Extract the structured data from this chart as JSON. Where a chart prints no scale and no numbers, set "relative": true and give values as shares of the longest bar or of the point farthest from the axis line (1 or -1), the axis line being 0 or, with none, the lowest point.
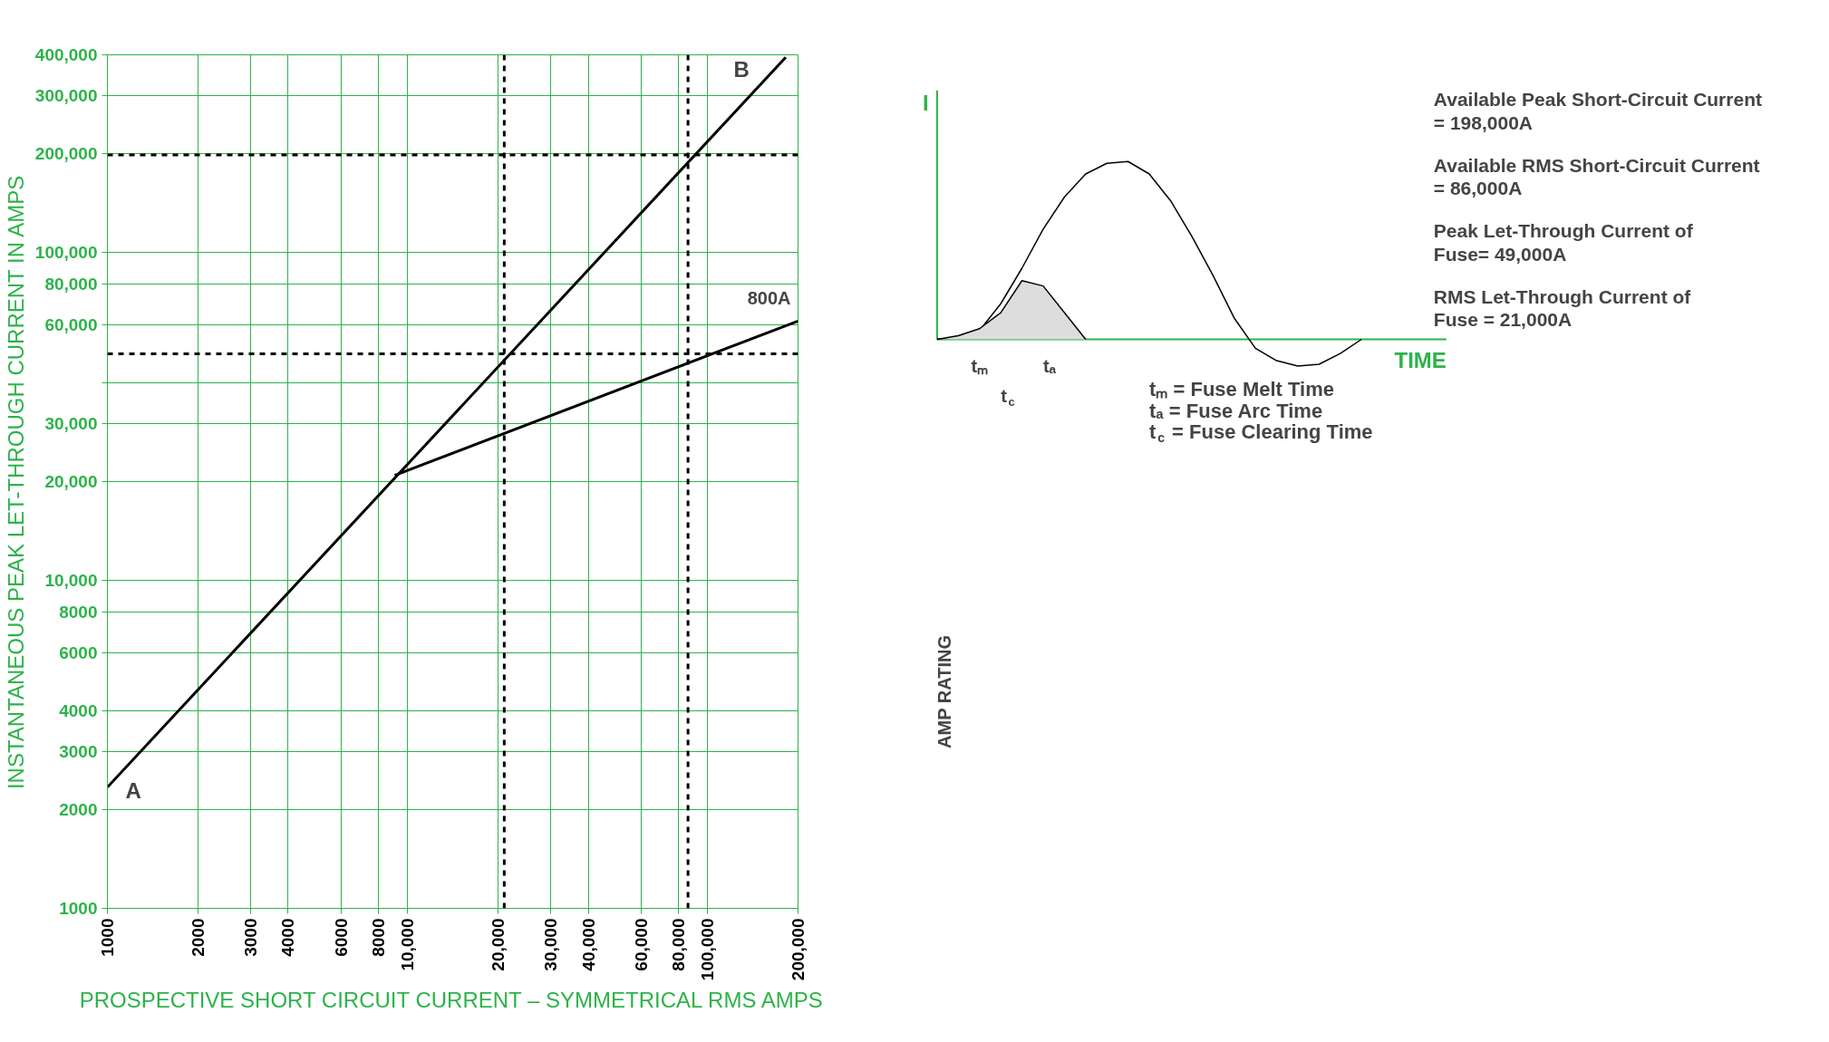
{
  "chart_data": [
    {
      "type": "line",
      "xlabel": "PROSPECTIVE SHORT CIRCUIT CURRENT – SYMMETRICAL RMS AMPS",
      "ylabel": "INSTANTANEOUS PEAK LET-THROUGH CURRENT IN AMPS",
      "log": "xy",
      "xlim": [
        1000,
        200000
      ],
      "ylim": [
        1000,
        400000
      ],
      "xticks": [
        1000,
        2000,
        3000,
        4000,
        6000,
        8000,
        {
          "value": 10000,
          "label": "10,000"
        },
        {
          "value": 20000,
          "label": "20,000"
        },
        {
          "value": 30000,
          "label": "30,000"
        },
        {
          "value": 40000,
          "label": "40,000"
        },
        {
          "value": 60000,
          "label": "60,000"
        },
        {
          "value": 80000,
          "label": "80,000"
        },
        {
          "value": 100000,
          "label": "100,000"
        },
        {
          "value": 200000,
          "label": "200,000"
        }
      ],
      "yticks": [
        1000,
        2000,
        3000,
        4000,
        6000,
        8000,
        {
          "value": 10000,
          "label": "10,000"
        },
        {
          "value": 20000,
          "label": "20,000"
        },
        {
          "value": 30000,
          "label": "30,000"
        },
        {
          "value": 40000,
          "label": null
        },
        {
          "value": 60000,
          "label": "60,000"
        },
        {
          "value": 80000,
          "label": "80,000"
        },
        {
          "value": 100000,
          "label": "100,000"
        },
        {
          "value": 200000,
          "label": "200,000"
        },
        {
          "value": 300000,
          "label": "300,000"
        },
        {
          "value": 400000,
          "label": "400,000"
        }
      ],
      "grid": true,
      "series": [
        {
          "color": "#000000",
          "x": [
            1000,
            182000
          ],
          "values": [
            2340,
            393000
          ]
        },
        {
          "name": "800A",
          "color": "#000000",
          "x": [
            9060,
            200000
          ],
          "values": [
            20900,
            61700
          ]
        }
      ],
      "ref_lines": [
        {
          "axis": "y",
          "value": 198000,
          "line_style": "dashed",
          "color": "#000000"
        },
        {
          "axis": "y",
          "value": 49000,
          "line_style": "dashed",
          "color": "#000000"
        },
        {
          "axis": "x",
          "value": 86000,
          "line_style": "dashed",
          "color": "#000000"
        },
        {
          "axis": "x",
          "value": 21000,
          "line_style": "dashed",
          "color": "#000000"
        }
      ],
      "annotations": [
        {
          "text": "A",
          "x": 1000,
          "y": 2340
        },
        {
          "text": "B",
          "x": 182000,
          "y": 393000
        },
        "AMP RATING"
      ]
    },
    {
      "type": "line",
      "relative": true,
      "xlabel": "TIME",
      "ylabel": "I",
      "categories": [
        null,
        null,
        null,
        null,
        null,
        null,
        null,
        null,
        null,
        null,
        null,
        null,
        null,
        null,
        null,
        null,
        null,
        null,
        null,
        null,
        null
      ],
      "series": [
        {
          "color": "#000000",
          "values": [
            0,
            0.01,
            0.05,
            0.2,
            0.4,
            0.62,
            0.8,
            0.93,
            0.99,
            1,
            0.93,
            0.78,
            0.58,
            0.36,
            0.12,
            -0.05,
            -0.12,
            -0.15,
            -0.14,
            -0.08,
            0
          ]
        },
        {
          "type": "area",
          "color": "#dddddd",
          "values": [
            0,
            0.02,
            0.06,
            0.15,
            0.33,
            0.3,
            0.15,
            0,
            null,
            null,
            null,
            null,
            null,
            null,
            null,
            null,
            null,
            null,
            null,
            null,
            null
          ]
        }
      ],
      "ref_lines": [
        {
          "axis": "y",
          "value": 0,
          "color": "#2db34a"
        }
      ],
      "annotations": [
        "Available Peak Short-Circuit Current = 198,000A",
        "Available RMS Short-Circuit Current = 86,000A",
        "Peak Let-Through Current of Fuse= 49,000A",
        "RMS Let-Through Current of Fuse = 21,000A",
        "tₘ = Fuse Melt Time",
        "tₐ = Fuse Arc Time",
        "t$_{c}$ = Fuse Clearing Time",
        "tₘ",
        "tₐ",
        "t$_{c}$"
      ]
    }
  ]
}
